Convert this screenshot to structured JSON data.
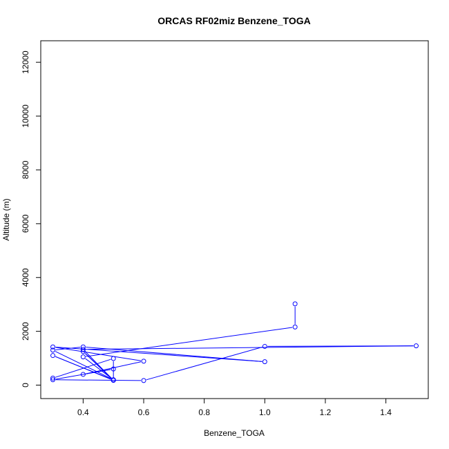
{
  "chart_data": {
    "type": "line",
    "title": "ORCAS RF02miz Benzene_TOGA",
    "xlabel": "Benzene_TOGA",
    "ylabel": "Altitude (m)",
    "xlim": [
      0.26,
      1.54
    ],
    "ylim": [
      -500,
      12800
    ],
    "xticks": [
      0.4,
      0.6,
      0.8,
      1.0,
      1.2,
      1.4
    ],
    "xtick_labels": [
      "0.4",
      "0.6",
      "0.8",
      "1.0",
      "1.2",
      "1.4"
    ],
    "yticks": [
      0,
      2000,
      4000,
      6000,
      8000,
      10000,
      12000
    ],
    "ytick_labels": [
      "0",
      "2000",
      "4000",
      "6000",
      "8000",
      "10000",
      "12000"
    ],
    "grid": false,
    "series": [
      {
        "color": "#0000ff",
        "marker": "open-circle",
        "points": [
          {
            "x": 1.1,
            "y": 3020
          },
          {
            "x": 1.1,
            "y": 2160
          },
          {
            "x": 0.4,
            "y": 1050
          },
          {
            "x": 0.5,
            "y": 200
          },
          {
            "x": 0.3,
            "y": 1300
          },
          {
            "x": 0.4,
            "y": 1420
          },
          {
            "x": 1.0,
            "y": 870
          },
          {
            "x": 0.3,
            "y": 1420
          },
          {
            "x": 0.6,
            "y": 890
          },
          {
            "x": 0.4,
            "y": 400
          },
          {
            "x": 0.5,
            "y": 600
          },
          {
            "x": 0.3,
            "y": 200
          },
          {
            "x": 0.6,
            "y": 170
          },
          {
            "x": 1.0,
            "y": 1440
          },
          {
            "x": 1.5,
            "y": 1460
          },
          {
            "x": 0.4,
            "y": 1330
          },
          {
            "x": 0.5,
            "y": 180
          },
          {
            "x": 0.4,
            "y": 1250
          },
          {
            "x": 0.5,
            "y": 190
          },
          {
            "x": 0.3,
            "y": 1100
          },
          {
            "x": 0.5,
            "y": 180
          },
          {
            "x": 0.5,
            "y": 990
          },
          {
            "x": 0.3,
            "y": 260
          }
        ]
      }
    ]
  }
}
